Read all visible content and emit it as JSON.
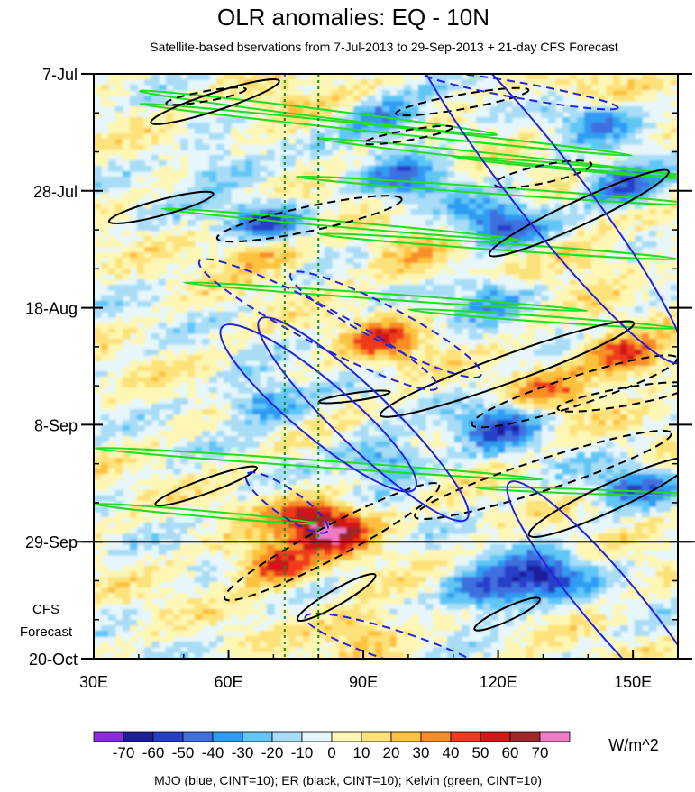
{
  "chart_data": {
    "type": "heatmap",
    "title": "OLR anomalies: EQ - 10N",
    "subtitle": "Satellite-based bservations from 7-Jul-2013 to 29-Sep-2013 + 21-day CFS Forecast",
    "xlabel": "",
    "ylabel": "",
    "x_ticks": [
      "30E",
      "60E",
      "90E",
      "120E",
      "150E"
    ],
    "x_tick_values": [
      30,
      60,
      90,
      120,
      150
    ],
    "xlim": [
      30,
      160
    ],
    "y_ticks": [
      "7-Jul",
      "28-Jul",
      "18-Aug",
      "8-Sep",
      "29-Sep",
      "20-Oct"
    ],
    "y_tick_days": [
      0,
      21,
      42,
      63,
      84,
      105
    ],
    "ylim_days": [
      0,
      105
    ],
    "forecast_start_day": 84,
    "forecast_label_line1": "CFS",
    "forecast_label_line2": "Forecast",
    "reference_longitudes": [
      72.5,
      80
    ],
    "colorbar": {
      "levels": [
        -70,
        -60,
        -50,
        -40,
        -30,
        -20,
        -10,
        0,
        10,
        20,
        30,
        40,
        50,
        60,
        70
      ],
      "labels": [
        "-70",
        "-60",
        "-50",
        "-40",
        "-30",
        "-20",
        "-10",
        "0",
        "10",
        "20",
        "30",
        "40",
        "50",
        "60",
        "70"
      ],
      "colors": [
        "#8a2be2",
        "#1c1c9c",
        "#2540c8",
        "#3f6fe0",
        "#2d9cf2",
        "#5fc6f6",
        "#a8dcf7",
        "#e6f6fb",
        "#fdf6b4",
        "#fde27a",
        "#fdc23e",
        "#f98d25",
        "#ef3a1f",
        "#d01919",
        "#9e2828",
        "#ef7cc6"
      ],
      "units": "W/m^2"
    },
    "legend": "MJO (blue, CINT=10); ER (black, CINT=10); Kelvin (green, CINT=10)",
    "series": [
      {
        "name": "MJO",
        "color": "#2424e0",
        "cint": 10
      },
      {
        "name": "ER",
        "color": "#000000",
        "cint": 10
      },
      {
        "name": "Kelvin",
        "color": "#22dd22",
        "cint": 10
      }
    ],
    "anomaly_features": [
      {
        "label": "positive anomaly",
        "lon": 70,
        "day": 6,
        "value": 20
      },
      {
        "label": "positive anomaly",
        "lon": 140,
        "day": 4,
        "value": 20
      },
      {
        "label": "negative anomaly",
        "lon": 95,
        "day": 8,
        "value": -40
      },
      {
        "label": "negative anomaly",
        "lon": 142,
        "day": 8,
        "value": -40
      },
      {
        "label": "negative anomaly",
        "lon": 58,
        "day": 17,
        "value": -30
      },
      {
        "label": "negative anomaly",
        "lon": 100,
        "day": 19,
        "value": -40
      },
      {
        "label": "negative anomaly",
        "lon": 148,
        "day": 20,
        "value": -50
      },
      {
        "label": "negative anomaly",
        "lon": 68,
        "day": 27,
        "value": -60
      },
      {
        "label": "negative anomaly",
        "lon": 120,
        "day": 27,
        "value": -50
      },
      {
        "label": "positive anomaly",
        "lon": 67,
        "day": 31,
        "value": 40
      },
      {
        "label": "positive anomaly",
        "lon": 100,
        "day": 34,
        "value": 20
      },
      {
        "label": "positive anomaly",
        "lon": 140,
        "day": 33,
        "value": 20
      },
      {
        "label": "negative anomaly",
        "lon": 118,
        "day": 40,
        "value": -30
      },
      {
        "label": "positive anomaly",
        "lon": 95,
        "day": 48,
        "value": 40
      },
      {
        "label": "positive anomaly",
        "lon": 148,
        "day": 51,
        "value": 50
      },
      {
        "label": "positive anomaly",
        "lon": 132,
        "day": 57,
        "value": 30
      },
      {
        "label": "negative anomaly",
        "lon": 68,
        "day": 59,
        "value": -40
      },
      {
        "label": "negative anomaly",
        "lon": 120,
        "day": 63,
        "value": -50
      },
      {
        "label": "negative anomaly",
        "lon": 95,
        "day": 69,
        "value": -40
      },
      {
        "label": "negative anomaly",
        "lon": 150,
        "day": 74,
        "value": -40
      },
      {
        "label": "positive anomaly",
        "lon": 78,
        "day": 80,
        "value": 40
      },
      {
        "label": "positive anomaly",
        "lon": 84,
        "day": 82,
        "value": 50
      },
      {
        "label": "positive anomaly",
        "lon": 70,
        "day": 88,
        "value": 50
      },
      {
        "label": "negative anomaly",
        "lon": 130,
        "day": 90,
        "value": -60
      },
      {
        "label": "negative anomaly",
        "lon": 117,
        "day": 93,
        "value": -50
      },
      {
        "label": "positive anomaly",
        "lon": 90,
        "day": 100,
        "value": 30
      }
    ]
  }
}
